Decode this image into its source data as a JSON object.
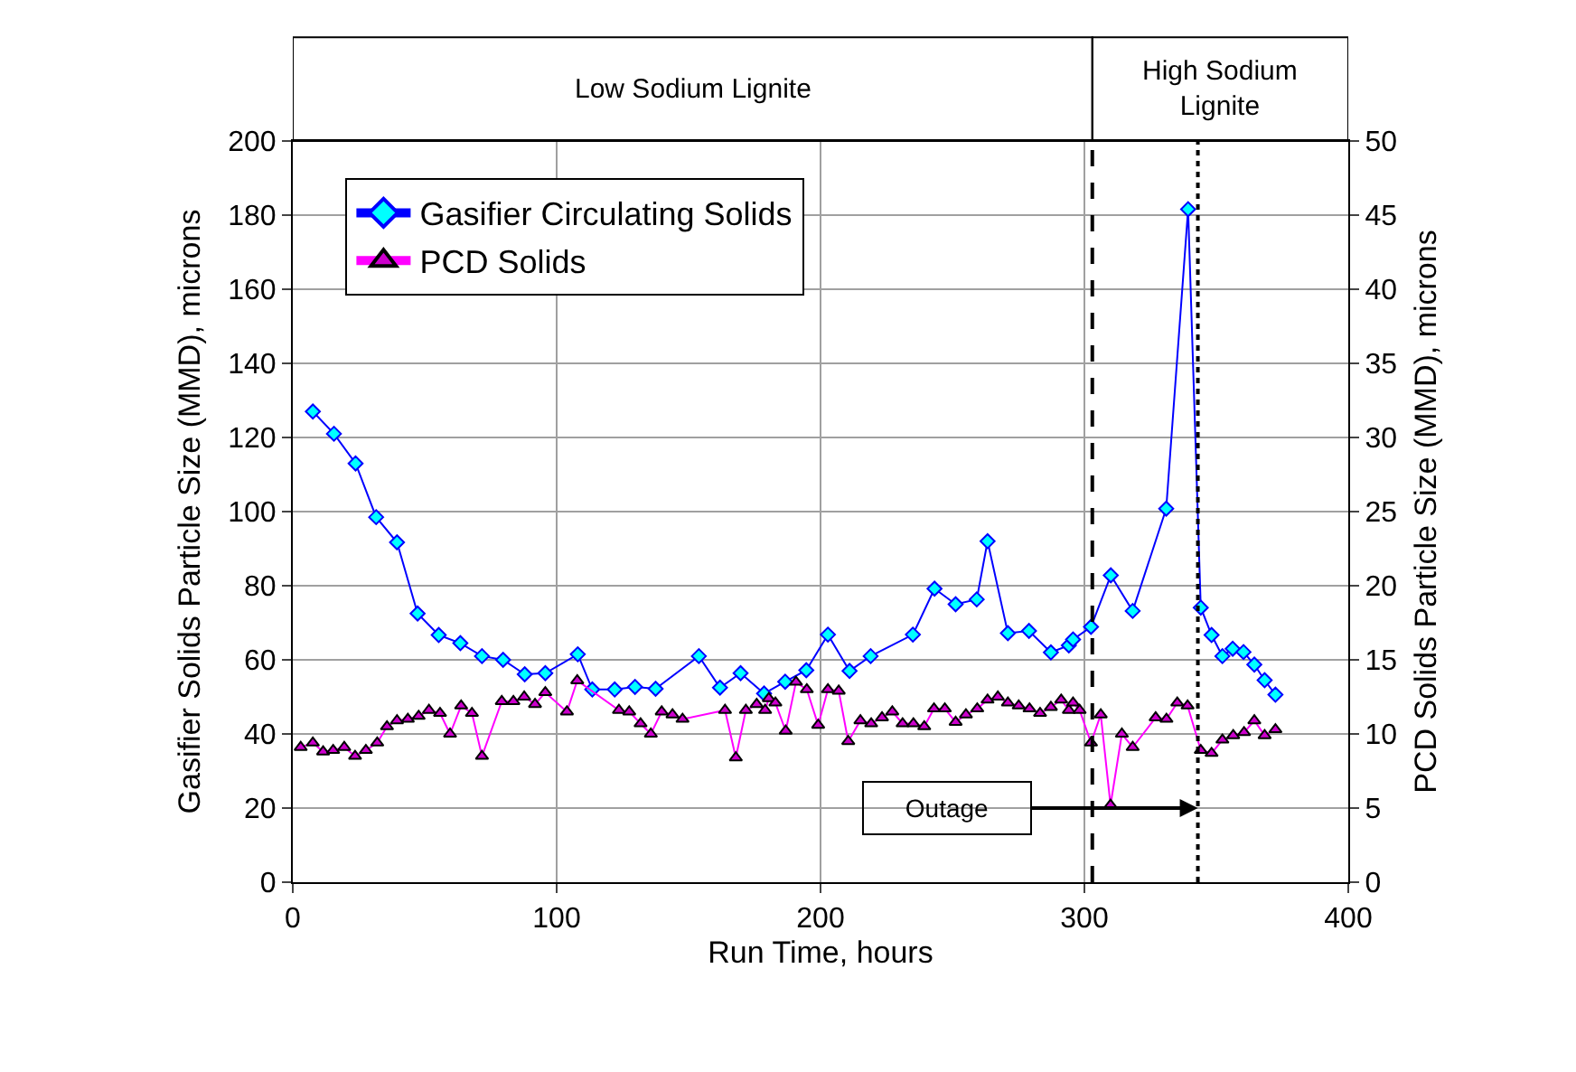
{
  "chart_data": {
    "type": "line",
    "xlabel": "Run Time, hours",
    "ylabel": "Gasifier Solids Particle Size (MMD), microns",
    "y2label": "PCD Solids Particle Size (MMD), microns",
    "xlim": [
      0,
      400
    ],
    "xticks": [
      0,
      100,
      200,
      300,
      400
    ],
    "ylim": [
      0,
      200
    ],
    "yticks": [
      0,
      20,
      40,
      60,
      80,
      100,
      120,
      140,
      160,
      180,
      200
    ],
    "y2lim": [
      0,
      50
    ],
    "y2ticks": [
      0,
      5,
      10,
      15,
      20,
      25,
      30,
      35,
      40,
      45,
      50
    ],
    "grid": true,
    "legend": "top left",
    "series": [
      {
        "name": "Gasifier Circulating Solids",
        "color": "#0000ff",
        "marker": "diamond",
        "x": [
          7.6,
          15.6,
          23.8,
          31.6,
          39.5,
          47.3,
          55.3,
          63.5,
          71.7,
          79.7,
          87.9,
          95.7,
          108,
          113.5,
          122,
          129.7,
          137.5,
          153.9,
          161.9,
          169.7,
          178.6,
          186.6,
          194.6,
          202.8,
          211,
          219,
          235,
          243.2,
          251.2,
          259.2,
          263.3,
          271,
          279,
          287.3,
          294.1,
          295.7,
          302.5,
          310,
          318.3,
          331,
          339.3,
          344.1,
          348.2,
          352.3,
          356.2,
          360.3,
          364.4,
          368.3,
          372.4
        ],
        "values": [
          127,
          121,
          113,
          98.5,
          91.7,
          72.5,
          66.7,
          64.5,
          61,
          60,
          56.1,
          56.4,
          61.5,
          52,
          52,
          52.7,
          52.2,
          61,
          52.5,
          56.4,
          50.9,
          54.1,
          57.2,
          66.8,
          57,
          61,
          66.8,
          79.2,
          75,
          76.3,
          92,
          67.2,
          67.8,
          62,
          63.9,
          65.5,
          68.9,
          82.8,
          73.2,
          100.8,
          181.6,
          74.1,
          66.7,
          61,
          63,
          62.1,
          58.7,
          54.5,
          50.6
        ]
      },
      {
        "name": "PCD Solids",
        "color": "#ff00ff",
        "marker": "triangle",
        "axis": "y2",
        "x": [
          3,
          7.6,
          11.5,
          15.3,
          19.5,
          23.6,
          27.7,
          32,
          35.7,
          39.5,
          43.6,
          47.7,
          51.6,
          55.8,
          59.6,
          63.8,
          67.9,
          71.7,
          79.2,
          83.6,
          87.7,
          91.8,
          95.7,
          103.9,
          107.8,
          123.6,
          127.5,
          131.8,
          135.7,
          139.8,
          143.9,
          147.7,
          163.8,
          167.9,
          171.7,
          175.8,
          179,
          180.4,
          182.9,
          186.8,
          190.7,
          194.8,
          199.1,
          202.8,
          206.9,
          210.5,
          215.1,
          219.2,
          223.3,
          227.2,
          231.1,
          235.2,
          239.3,
          243,
          247.1,
          251.2,
          255.1,
          259.4,
          263.3,
          267.2,
          271,
          275.1,
          279.2,
          283.2,
          287.3,
          291.2,
          294.1,
          295.7,
          298.2,
          302.5,
          306.2,
          309.9,
          314.2,
          318.3,
          327,
          331.1,
          335.2,
          339.1,
          344.1,
          348.2,
          352.3,
          356.4,
          360.5,
          364.4,
          368.3,
          372.4
        ],
        "values": [
          9.1,
          9.4,
          8.8,
          8.9,
          9.1,
          8.5,
          8.9,
          9.4,
          10.5,
          10.9,
          11,
          11.2,
          11.6,
          11.4,
          10,
          11.9,
          11.4,
          8.5,
          12.2,
          12.2,
          12.5,
          12,
          12.8,
          11.5,
          13.6,
          11.6,
          11.5,
          10.7,
          10,
          11.5,
          11.3,
          11,
          11.6,
          8.4,
          11.6,
          12,
          11.6,
          12.4,
          12.1,
          10.2,
          13.5,
          13,
          10.6,
          13,
          12.9,
          9.5,
          10.9,
          10.7,
          11.1,
          11.5,
          10.7,
          10.7,
          10.5,
          11.7,
          11.7,
          10.8,
          11.3,
          11.7,
          12.3,
          12.5,
          12.1,
          11.9,
          11.7,
          11.4,
          11.8,
          12.3,
          11.6,
          12.1,
          11.6,
          9.4,
          11.3,
          5.2,
          10,
          9.1,
          11.1,
          11,
          12.1,
          11.9,
          8.9,
          8.7,
          9.6,
          9.9,
          10.1,
          10.9,
          9.9,
          10.3
        ]
      }
    ],
    "ref_lines": [
      {
        "axis": "x",
        "value": 303,
        "line_style": "dashed"
      },
      {
        "axis": "x",
        "value": 343,
        "line_style": "dotted"
      }
    ],
    "annotations": [
      "Low Sodium Lignite",
      "High Sodium Lignite",
      "Outage"
    ]
  }
}
